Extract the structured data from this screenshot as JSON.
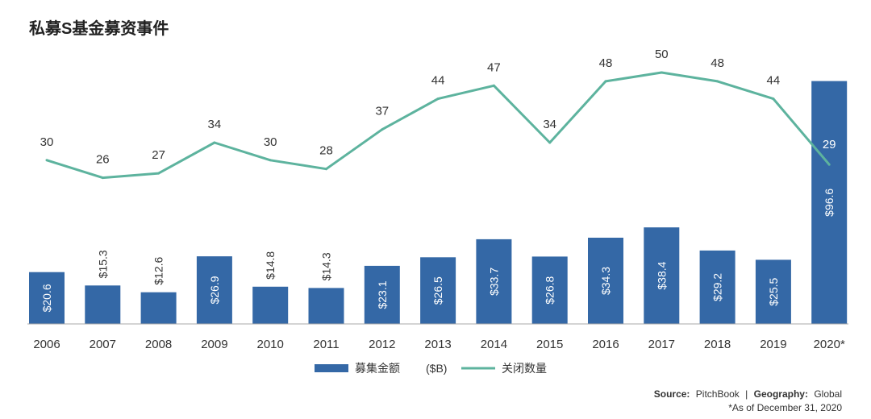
{
  "colors": {
    "bar": "#3468a6",
    "line": "#5db39e",
    "axis": "#aaaaaa",
    "text": "#333333",
    "bar_label_inside": "#ffffff"
  },
  "chart_data": {
    "type": "bar",
    "title": "私募S基金募资事件",
    "categories": [
      "2006",
      "2007",
      "2008",
      "2009",
      "2010",
      "2011",
      "2012",
      "2013",
      "2014",
      "2015",
      "2016",
      "2017",
      "2018",
      "2019",
      "2020*"
    ],
    "series": [
      {
        "name": "募集金额",
        "type": "bar",
        "values": [
          20.6,
          15.3,
          12.6,
          26.9,
          14.8,
          14.3,
          23.1,
          26.5,
          33.7,
          26.8,
          34.3,
          38.4,
          29.2,
          25.5,
          96.6
        ],
        "labels": [
          "$20.6",
          "$15.3",
          "$12.6",
          "$26.9",
          "$14.8",
          "$14.3",
          "$23.1",
          "$26.5",
          "$33.7",
          "$26.8",
          "$34.3",
          "$38.4",
          "$29.2",
          "$25.5",
          "$96.6"
        ]
      },
      {
        "name": "关闭数量",
        "type": "line",
        "values": [
          30,
          26,
          27,
          34,
          30,
          28,
          37,
          44,
          47,
          34,
          48,
          50,
          48,
          44,
          29
        ],
        "labels": [
          "30",
          "26",
          "27",
          "34",
          "30",
          "28",
          "37",
          "44",
          "47",
          "34",
          "48",
          "50",
          "48",
          "44",
          "29"
        ]
      }
    ],
    "legend": {
      "placement": "bottom-center",
      "unit": "($B)"
    },
    "grid": false,
    "bar_ylim": [
      0,
      100
    ],
    "line_ylim": [
      0,
      60
    ]
  },
  "footer": {
    "source_label": "Source:",
    "source_value": "PitchBook",
    "separator": "|",
    "geo_label": "Geography:",
    "geo_value": "Global",
    "note": "*As of December 31, 2020"
  }
}
